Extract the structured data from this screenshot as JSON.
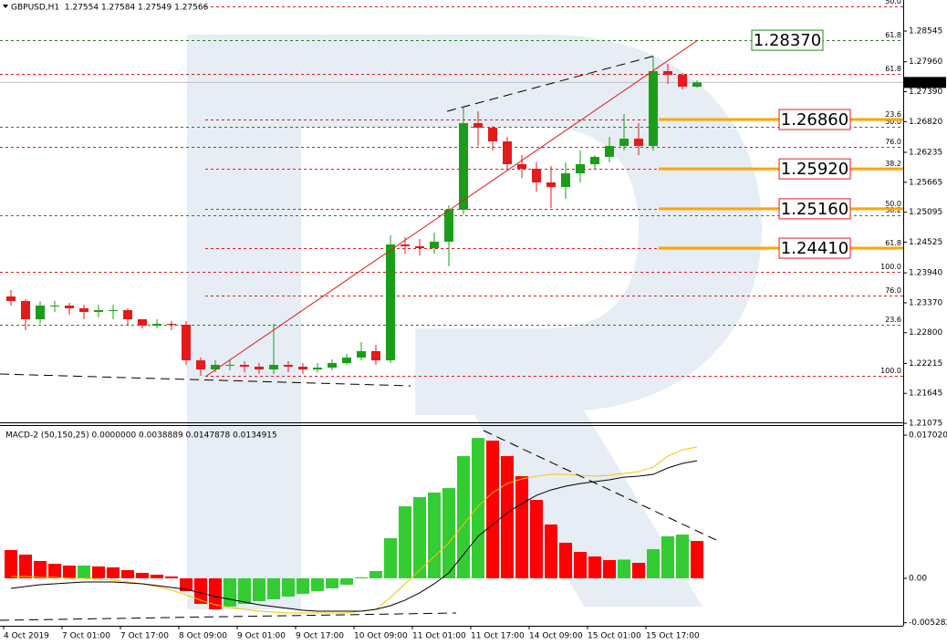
{
  "chart_data": [
    {
      "type": "candlestick",
      "title": "GBPUSD,H1  1.27554 1.27584 1.27549 1.27566",
      "categories": [
        "4 Oct 2019",
        null,
        null,
        null,
        "7 Oct 01:00",
        null,
        null,
        null,
        "7 Oct 17:00",
        null,
        null,
        null,
        "8 Oct 09:00",
        null,
        null,
        null,
        "9 Oct 01:00",
        null,
        null,
        null,
        "9 Oct 17:00",
        null,
        null,
        null,
        "10 Oct 09:00",
        null,
        null,
        null,
        "11 Oct 01:00",
        null,
        null,
        null,
        "11 Oct 17:00",
        null,
        null,
        null,
        "14 Oct 09:00",
        null,
        null,
        null,
        "15 Oct 01:00",
        null,
        null,
        null,
        "15 Oct 17:00",
        null,
        null,
        null
      ],
      "open": [
        1.2349,
        1.23403,
        1.23056,
        1.23317,
        1.23317,
        1.23265,
        1.23195,
        1.2323,
        1.2323,
        1.23056,
        1.22934,
        1.22969,
        1.22952,
        1.22274,
        1.22101,
        1.22188,
        1.22188,
        1.22153,
        1.22101,
        1.22188,
        1.22153,
        1.22101,
        1.22135,
        1.22222,
        1.22327,
        1.22448,
        1.22274,
        1.2448,
        1.24446,
        1.24411,
        1.24533,
        1.2514,
        1.26791,
        1.26704,
        1.26443,
        1.26009,
        1.25922,
        1.25662,
        1.25575,
        1.25835,
        1.26009,
        1.26148,
        1.26356,
        1.26495,
        1.26356,
        1.27781,
        1.27711,
        1.27485
      ],
      "high": [
        1.23612,
        1.23438,
        1.23403,
        1.23403,
        1.23369,
        1.23334,
        1.23334,
        1.23334,
        1.23265,
        1.23056,
        1.23056,
        1.23021,
        1.23021,
        1.22327,
        1.22274,
        1.22292,
        1.22257,
        1.22222,
        1.22969,
        1.22257,
        1.22222,
        1.22222,
        1.22292,
        1.22396,
        1.22622,
        1.2257,
        1.24654,
        1.24619,
        1.24585,
        1.24706,
        1.25227,
        1.27086,
        1.27016,
        1.26739,
        1.2653,
        1.26183,
        1.26044,
        1.25974,
        1.26044,
        1.2627,
        1.26183,
        1.2653,
        1.26964,
        1.26791,
        1.28059,
        1.2792,
        1.27746,
        1.27607
      ],
      "low": [
        1.23317,
        1.22848,
        1.22969,
        1.23195,
        1.23143,
        1.23056,
        1.23091,
        1.23056,
        1.22952,
        1.22882,
        1.22882,
        1.22848,
        1.22188,
        1.21979,
        1.22049,
        1.22083,
        1.22049,
        1.22014,
        1.22014,
        1.22049,
        1.22014,
        1.22049,
        1.22083,
        1.22188,
        1.22274,
        1.22188,
        1.22222,
        1.24307,
        1.24272,
        1.24307,
        1.24064,
        1.25054,
        1.26356,
        1.2627,
        1.25922,
        1.25748,
        1.25488,
        1.25175,
        1.25349,
        1.25662,
        1.25922,
        1.26044,
        1.2627,
        1.26183,
        1.2627,
        1.27538,
        1.27433,
        1.27468
      ],
      "close": [
        1.23403,
        1.23056,
        1.23317,
        1.23317,
        1.23265,
        1.23195,
        1.2323,
        1.2323,
        1.23056,
        1.22934,
        1.22969,
        1.22952,
        1.22274,
        1.22101,
        1.22188,
        1.22188,
        1.22153,
        1.22101,
        1.22188,
        1.22153,
        1.22101,
        1.22135,
        1.22222,
        1.22327,
        1.22448,
        1.22274,
        1.2448,
        1.24446,
        1.24411,
        1.24533,
        1.2514,
        1.26791,
        1.26704,
        1.26443,
        1.26009,
        1.25922,
        1.25662,
        1.25575,
        1.25835,
        1.26009,
        1.26148,
        1.26356,
        1.26495,
        1.26356,
        1.27781,
        1.27711,
        1.27485,
        1.27566
      ],
      "up_color": "#1a9e1a",
      "down_color": "#e31b1b",
      "ylim": [
        1.21093,
        1.29136
      ],
      "yticks": [
        {
          "value": 1.28545,
          "label": "1.28545"
        },
        {
          "value": 1.2796,
          "label": "1.27960"
        },
        {
          "value": 1.2739,
          "label": "1.27390"
        },
        {
          "value": 1.2682,
          "label": "1.26820"
        },
        {
          "value": 1.26235,
          "label": "1.26235"
        },
        {
          "value": 1.25665,
          "label": "1.25665"
        },
        {
          "value": 1.25095,
          "label": "1.25095"
        },
        {
          "value": 1.24525,
          "label": "1.24525"
        },
        {
          "value": 1.2394,
          "label": "1.23940"
        },
        {
          "value": 1.2337,
          "label": "1.23370"
        },
        {
          "value": 1.228,
          "label": "1.22800"
        },
        {
          "value": 1.22215,
          "label": "1.22215"
        },
        {
          "value": 1.21645,
          "label": "1.21645"
        },
        {
          "value": 1.21075,
          "label": "1.21075"
        }
      ],
      "grid": false,
      "current_price": 1.27566,
      "fib_levels": [
        {
          "label": "50.0",
          "price": 1.29014,
          "color": "#e31b1b",
          "full": false
        },
        {
          "label": "61.8",
          "price": 1.2837,
          "color": "#1a8a1a",
          "full": true
        },
        {
          "label": "61.8",
          "price": 1.27729,
          "color": "#e31b1b",
          "full": true
        },
        {
          "label": "23.6",
          "price": 1.2686,
          "color": "#e31b1b",
          "full": false
        },
        {
          "label": "50.0",
          "price": 1.26721,
          "color": "#1a8a1a",
          "full": true
        },
        {
          "label": "76.0",
          "price": 1.26339,
          "color": "#e31b1b",
          "full": true
        },
        {
          "label": "38.2",
          "price": 1.2592,
          "color": "#e31b1b",
          "full": false
        },
        {
          "label": "50.0",
          "price": 1.2516,
          "color": "#e31b1b",
          "full": false
        },
        {
          "label": "38.2",
          "price": 1.25036,
          "color": "#1a8a1a",
          "full": true
        },
        {
          "label": "61.8",
          "price": 1.2441,
          "color": "#e31b1b",
          "full": false
        },
        {
          "label": "100.0",
          "price": 1.23959,
          "color": "#e31b1b",
          "full": true
        },
        {
          "label": "76.0",
          "price": 1.23508,
          "color": "#e31b1b",
          "full": false
        },
        {
          "label": "23.6",
          "price": 1.22952,
          "color": "#1a8a1a",
          "full": true
        },
        {
          "label": "100.0",
          "price": 1.21979,
          "color": "#e31b1b",
          "full": false
        }
      ],
      "targets": [
        {
          "value": 1.2837,
          "label": "1.28370",
          "color": "#1a8a1a"
        },
        {
          "value": 1.2686,
          "label": "1.26860",
          "color": "#e31b1b",
          "marker_color": "#ffa500"
        },
        {
          "value": 1.2592,
          "label": "1.25920",
          "color": "#e31b1b",
          "marker_color": "#ffa500"
        },
        {
          "value": 1.2516,
          "label": "1.25160",
          "color": "#e31b1b",
          "marker_color": "#ffa500"
        },
        {
          "value": 1.2441,
          "label": "1.24410",
          "color": "#e31b1b",
          "marker_color": "#ffa500"
        }
      ]
    },
    {
      "type": "macd",
      "title": "MACD-2 (50,150,25) 0.0000000 0.0038889 0.0147878 0.0134915",
      "histogram": [
        0.00336,
        0.00282,
        0.00206,
        0.00173,
        0.00152,
        0.00152,
        0.00141,
        0.0013,
        0.00098,
        0.00065,
        0.00043,
        0.00022,
        -0.00152,
        -0.00304,
        -0.00369,
        -0.00336,
        -0.00304,
        -0.00271,
        -0.00249,
        -0.00217,
        -0.00184,
        -0.00152,
        -0.00119,
        -0.00076,
        0.00011,
        0.00087,
        0.00477,
        0.00856,
        0.00965,
        0.01019,
        0.01073,
        0.01453,
        0.01669,
        0.01637,
        0.01453,
        0.01214,
        0.00932,
        0.0064,
        0.00423,
        0.00314,
        0.0026,
        0.00217,
        0.00223,
        0.00184,
        0.00347,
        0.00499,
        0.0052,
        0.00444
      ],
      "up_color": "#33cc33",
      "down_color": "#ff0000",
      "lines": [
        {
          "color": "#f5c400",
          "values": [
            0.00022,
            0.00022,
            0.00011,
            0.00011,
            0,
            0,
            -0.00011,
            -0.00022,
            -0.00043,
            -0.00065,
            -0.00098,
            -0.00141,
            -0.00195,
            -0.0026,
            -0.00314,
            -0.00347,
            -0.00369,
            -0.0039,
            -0.00401,
            -0.00412,
            -0.00412,
            -0.00412,
            -0.00412,
            -0.00412,
            -0.0039,
            -0.00369,
            -0.00228,
            -0.00065,
            0.00098,
            0.0026,
            0.00423,
            0.0064,
            0.00856,
            0.01019,
            0.01127,
            0.01182,
            0.01214,
            0.01236,
            0.01236,
            0.01225,
            0.01214,
            0.01225,
            0.01247,
            0.01268,
            0.01322,
            0.01453,
            0.01528,
            0.01561
          ]
        },
        {
          "color": "#000000",
          "values": [
            -0.00119,
            -0.00098,
            -0.00076,
            -0.00065,
            -0.00054,
            -0.00043,
            -0.00043,
            -0.00043,
            -0.00054,
            -0.00065,
            -0.00087,
            -0.00108,
            -0.0013,
            -0.00173,
            -0.00217,
            -0.00249,
            -0.00282,
            -0.00314,
            -0.00336,
            -0.00358,
            -0.00379,
            -0.0039,
            -0.0039,
            -0.0039,
            -0.0039,
            -0.00369,
            -0.00325,
            -0.0026,
            -0.00173,
            -0.00065,
            0.00065,
            0.00282,
            0.00499,
            0.0064,
            0.0078,
            0.00889,
            0.00986,
            0.01051,
            0.01095,
            0.01127,
            0.01149,
            0.01171,
            0.01203,
            0.01214,
            0.01236,
            0.01312,
            0.01366,
            0.01398
          ]
        }
      ],
      "ylim": [
        -0.00564,
        0.01811
      ],
      "yticks": [
        0.0170209,
        {
          "value": 0,
          "label": "0.00"
        },
        -0.005282
      ]
    }
  ]
}
